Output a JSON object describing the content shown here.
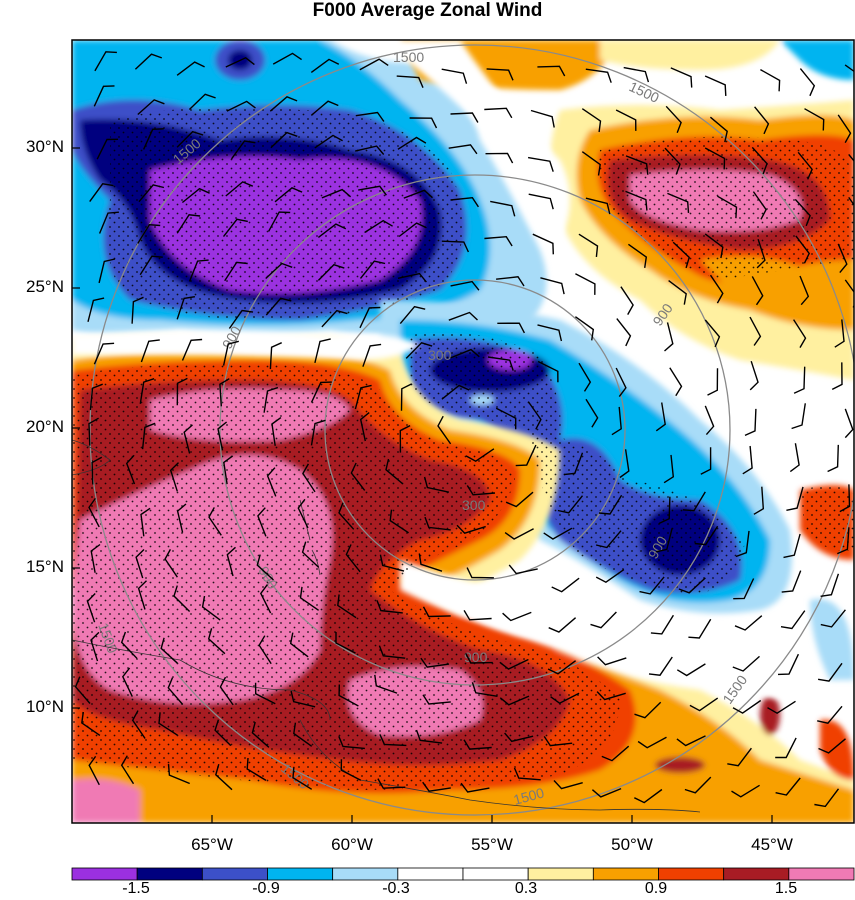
{
  "title": "F000 Average Zonal Wind",
  "lat_labels": [
    "30°N",
    "25°N",
    "20°N",
    "15°N",
    "10°N"
  ],
  "lon_labels": [
    "65°W",
    "60°W",
    "55°W",
    "50°W",
    "45°W"
  ],
  "range_ring_labels": [
    "300",
    "900",
    "1500"
  ],
  "colorbar": {
    "labels": [
      "-1.5",
      "-0.9",
      "-0.3",
      "0.3",
      "0.9",
      "1.5"
    ],
    "colors": [
      "#9b30e0",
      "#00007f",
      "#3c50c8",
      "#00b4f0",
      "#a8dcf8",
      "#ffffff",
      "#ffffff",
      "#fff0a0",
      "#f8a000",
      "#f04000",
      "#a81c24",
      "#f07ab4"
    ]
  },
  "stippling": "dots over significant regions"
}
